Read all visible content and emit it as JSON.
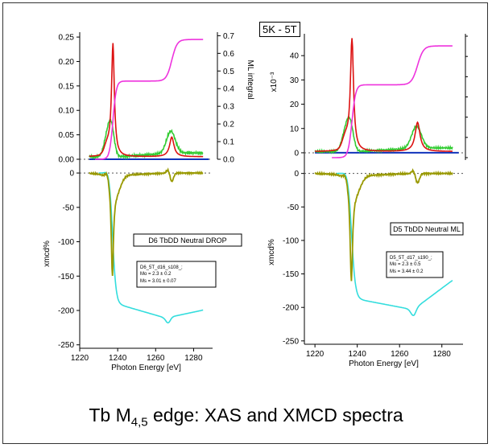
{
  "page": {
    "tag": "5K - 5T",
    "caption_pre": "Tb M",
    "caption_sub": "4,5",
    "caption_post": " edge: XAS and XMCD spectra"
  },
  "colors": {
    "xas_red": "#dd1111",
    "xas_green": "#33cc33",
    "ml_integral": "#ee33dd",
    "xmcd_olive": "#999900",
    "xmcd_integral": "#33dddd",
    "baseline_blue": "#1133bb"
  },
  "chart_data": [
    {
      "type": "line",
      "panel": "left",
      "xlabel": "Photon Energy [eV]",
      "xlim": [
        1220,
        1290
      ],
      "x_ticks": [
        "1220",
        "1240",
        "1260",
        "1280"
      ],
      "top": {
        "ylim": [
          0,
          0.26
        ],
        "y_ticks": [
          "0.00",
          "0.05",
          "0.10",
          "0.15",
          "0.20",
          "0.25"
        ],
        "right_ylabel": "ML integral",
        "right_ylim": [
          0,
          0.72
        ],
        "right_ticks": [
          "0.0",
          "0.1",
          "0.2",
          "0.3",
          "0.4",
          "0.5",
          "0.6",
          "0.7"
        ]
      },
      "bottom": {
        "ylabel": "xmcd%",
        "ylim": [
          -255,
          20
        ],
        "y_ticks": [
          "0",
          "-50",
          "-100",
          "-150",
          "-200",
          "-250"
        ],
        "sample_label": "D6 TbDD Neutral DROP",
        "fit_box": {
          "line1": "D6_5T_d16_s108_;",
          "line2": "Mo =  2.3   ± 0.2",
          "line3": "Ms =  3.01 ±  0.07"
        }
      }
    },
    {
      "type": "line",
      "panel": "right",
      "xlabel": "Photon Energy [eV]",
      "xlim": [
        1215,
        1290
      ],
      "x_ticks": [
        "1220",
        "1240",
        "1260",
        "1280"
      ],
      "top": {
        "ylim": [
          -3,
          49
        ],
        "y_ticks": [
          "0",
          "10",
          "20",
          "30",
          "40"
        ],
        "ylabel": "x10⁻³"
      },
      "bottom": {
        "ylabel": "xmcd%",
        "ylim": [
          -255,
          20
        ],
        "y_ticks": [
          "0",
          "-50",
          "-100",
          "-150",
          "-200",
          "-250"
        ],
        "sample_label": "D5 TbDD Neutral ML",
        "fit_box": {
          "line1": "D5_5T_d17_s190_;",
          "line2": "Mo =  2.3   ± 0.5",
          "line3": "Ms =  3.44 ±  0.2"
        }
      }
    }
  ]
}
